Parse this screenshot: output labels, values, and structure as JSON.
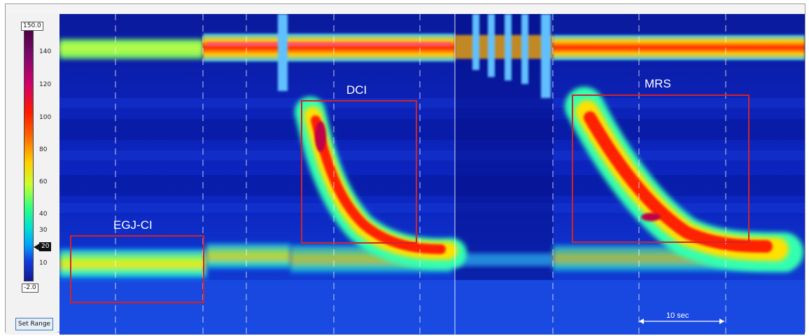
{
  "color_scale": {
    "max_label": "150.0",
    "min_label": "-2.0",
    "ticks": [
      "140",
      "120",
      "100",
      "80",
      "60",
      "40",
      "30",
      "10"
    ],
    "marker_value": "20",
    "set_range_label": "Set Range"
  },
  "annotations": {
    "egj_ci": "EGJ-CI",
    "dci": "DCI",
    "mrs": "MRS",
    "time_scale": "10 sec"
  },
  "colors": {
    "box_outline": "#d2232a",
    "background_low": "#0a1ea8",
    "high_pressure": "#e0002a"
  }
}
